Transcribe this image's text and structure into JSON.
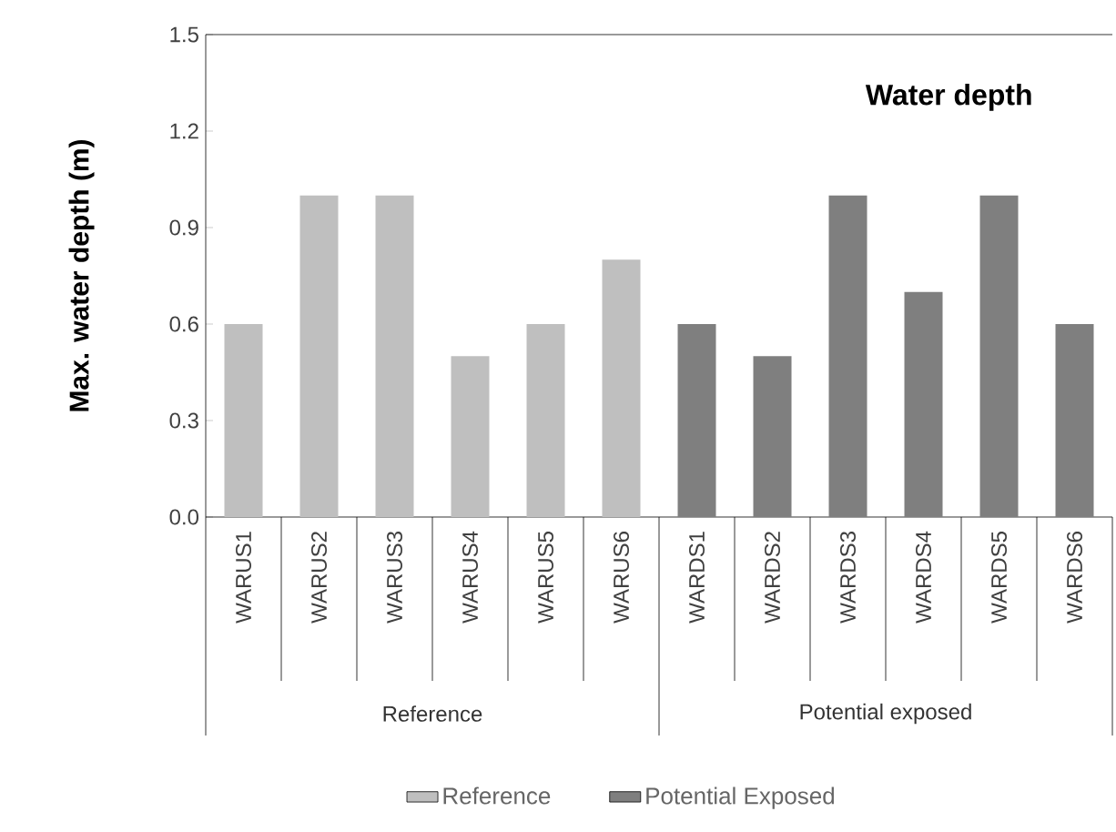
{
  "chart_data": {
    "type": "bar",
    "title": "Water depth",
    "ylabel": "Max. water depth (m)",
    "categories": [
      "WARUS1",
      "WARUS2",
      "WARUS3",
      "WARUS4",
      "WARUS5",
      "WARUS6",
      "WARDS1",
      "WARDS2",
      "WARDS3",
      "WARDS4",
      "WARDS5",
      "WARDS6"
    ],
    "series": [
      {
        "name": "Reference",
        "color": "#bfbfbf",
        "values": [
          0.6,
          1.0,
          1.0,
          0.5,
          0.6,
          0.8,
          null,
          null,
          null,
          null,
          null,
          null
        ]
      },
      {
        "name": "Potential Exposed",
        "color": "#7f7f7f",
        "values": [
          null,
          null,
          null,
          null,
          null,
          null,
          0.6,
          0.5,
          1.0,
          0.7,
          1.0,
          0.6
        ]
      }
    ],
    "ylim": [
      0,
      1.5
    ],
    "yticks": [
      {
        "value": 0,
        "label": "0.0"
      },
      0.3,
      0.6,
      0.9,
      1.2,
      1.5
    ],
    "annotations": [
      "Reference",
      "Potential exposed"
    ],
    "legend": "bottom"
  }
}
